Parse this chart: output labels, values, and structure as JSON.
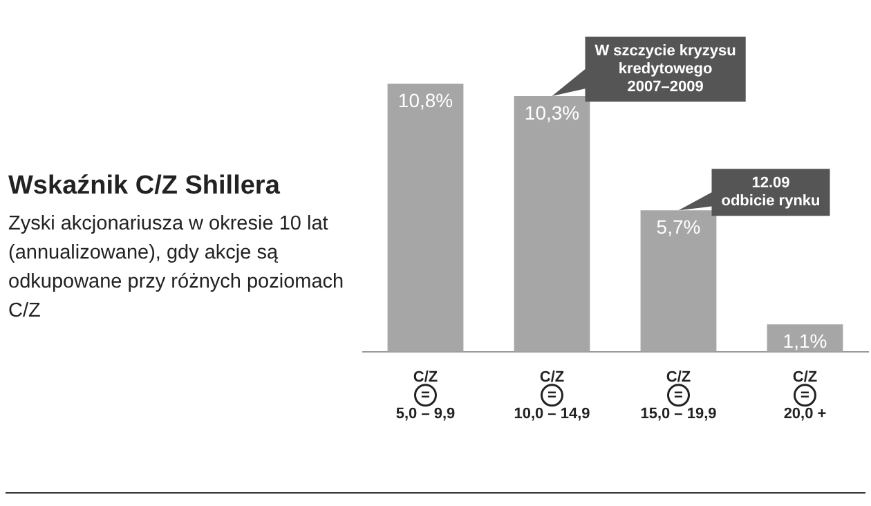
{
  "chart_data": {
    "type": "bar",
    "title": "Wskaźnik C/Z Shillera",
    "subtitle": "Zyski akcjonariusza w okresie 10 lat (annualizowane), gdy akcje są odkupowane przy różnych poziomach C/Z",
    "categories": [
      "C/Z\n=\n5,0 – 9,9",
      "C/Z\n=\n10,0 – 14,9",
      "C/Z\n=\n15,0 – 19,9",
      "C/Z\n=\n20,0 +"
    ],
    "values": [
      10.8,
      10.3,
      5.7,
      1.1
    ],
    "color": "#a6a6a6",
    "value_labels": [
      "10,8%",
      "10,3%",
      "5,7%",
      "1,1%"
    ],
    "annotations": [
      {
        "text": "W szczycie kryzysu\nkredytowego\n2007–2009",
        "x": "C/Z\n=\n10,0 – 14,9",
        "y": 10.3
      },
      {
        "text": "12.09\nodbicie rynku",
        "x": "C/Z\n=\n15,0 – 19,9",
        "y": 5.7
      }
    ],
    "grid": false,
    "legend": false
  }
}
